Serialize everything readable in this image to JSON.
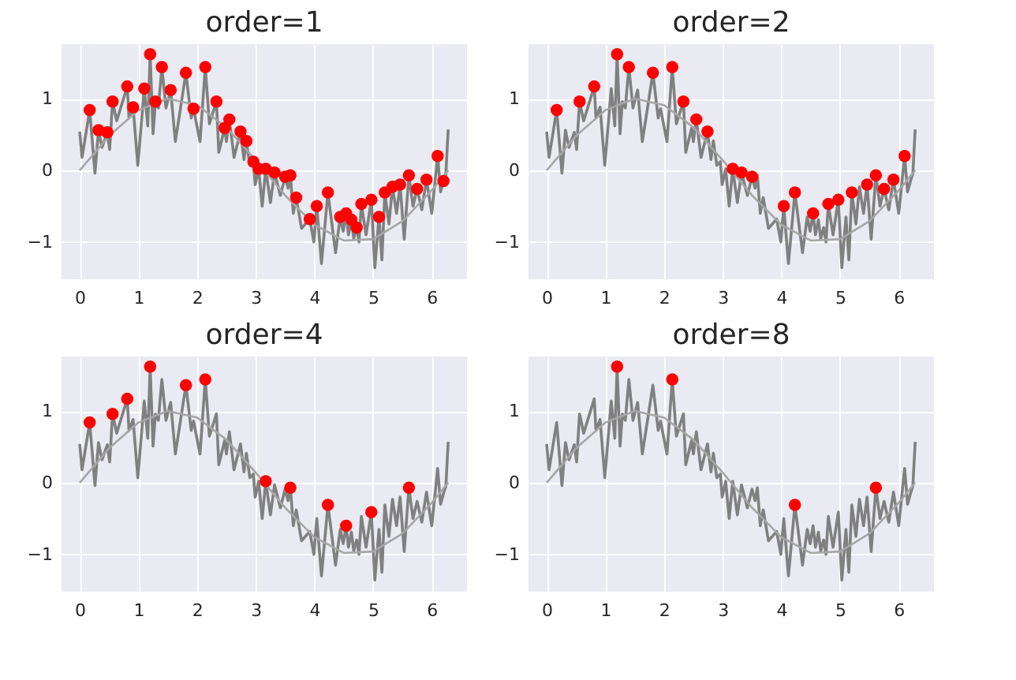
{
  "chart_data": [
    {
      "type": "line",
      "title": "order=1",
      "xlim": [
        -0.31,
        6.6
      ],
      "ylim": [
        -1.52,
        1.76
      ],
      "xticks": [
        0,
        1,
        2,
        3,
        4,
        5,
        6
      ],
      "yticks": [
        -1,
        0,
        1
      ],
      "grid": true,
      "series": [
        {
          "type": "line",
          "color": "#808080",
          "x": [
            0,
            0.04,
            0.17,
            0.26,
            0.32,
            0.38,
            0.47,
            0.51,
            0.56,
            0.63,
            0.81,
            0.84,
            0.91,
            0.99,
            1.1,
            1.16,
            1.2,
            1.25,
            1.29,
            1.34,
            1.4,
            1.47,
            1.55,
            1.63,
            1.81,
            1.9,
            1.94,
            2.05,
            2.14,
            2.21,
            2.33,
            2.37,
            2.47,
            2.5,
            2.55,
            2.63,
            2.74,
            2.8,
            2.84,
            2.9,
            2.96,
            2.99,
            3.05,
            3.11,
            3.17,
            3.25,
            3.32,
            3.42,
            3.5,
            3.55,
            3.59,
            3.64,
            3.69,
            3.78,
            3.92,
            3.99,
            4.04,
            4.12,
            4.23,
            4.36,
            4.44,
            4.49,
            4.54,
            4.58,
            4.63,
            4.67,
            4.72,
            4.76,
            4.8,
            4.88,
            4.97,
            5.03,
            5.1,
            5.15,
            5.2,
            5.27,
            5.33,
            5.4,
            5.46,
            5.53,
            5.61,
            5.68,
            5.75,
            5.83,
            5.91,
            6.0,
            6.1,
            6.15,
            6.2,
            6.24,
            6.28
          ],
          "values": [
            0.54,
            0.18,
            0.84,
            -0.04,
            0.56,
            0.32,
            0.53,
            0.29,
            0.96,
            0.69,
            1.17,
            0.73,
            0.88,
            0.07,
            1.14,
            0.62,
            1.62,
            0.51,
            0.96,
            0.87,
            1.44,
            0.87,
            1.12,
            0.4,
            1.36,
            0.73,
            0.86,
            0.4,
            1.44,
            0.65,
            0.96,
            0.25,
            0.59,
            0.4,
            0.71,
            0.18,
            0.54,
            0.15,
            0.41,
            0.07,
            0.12,
            -0.2,
            0.02,
            -0.5,
            0.02,
            -0.45,
            -0.03,
            -0.35,
            -0.09,
            -0.25,
            -0.07,
            -0.6,
            -0.38,
            -0.81,
            -0.68,
            -1.0,
            -0.5,
            -1.3,
            -0.31,
            -1.15,
            -0.65,
            -0.85,
            -0.6,
            -0.9,
            -0.69,
            -0.95,
            -0.8,
            -1.0,
            -0.47,
            -0.9,
            -0.41,
            -1.36,
            -0.65,
            -1.25,
            -0.31,
            -0.75,
            -0.23,
            -0.6,
            -0.2,
            -0.96,
            -0.07,
            -0.5,
            -0.26,
            -0.55,
            -0.13,
            -0.6,
            0.2,
            -0.3,
            -0.15,
            -0.05,
            0.57
          ]
        },
        {
          "type": "line",
          "color": "#a6a6a6",
          "x": [
            0,
            0.5,
            1,
            1.5,
            2,
            2.5,
            3,
            3.5,
            4,
            4.5,
            5,
            5.5,
            6,
            6.28
          ],
          "values": [
            0,
            0.48,
            0.84,
            1.0,
            0.91,
            0.6,
            0.14,
            -0.35,
            -0.76,
            -0.98,
            -0.96,
            -0.71,
            -0.28,
            0.0
          ]
        },
        {
          "type": "scatter",
          "marker": "circle",
          "color": "#ff0000",
          "x": [
            0.17,
            0.32,
            0.47,
            0.56,
            0.81,
            0.91,
            1.1,
            1.2,
            1.29,
            1.4,
            1.55,
            1.81,
            1.94,
            2.14,
            2.33,
            2.47,
            2.55,
            2.74,
            2.84,
            2.96,
            3.05,
            3.17,
            3.32,
            3.5,
            3.59,
            3.69,
            3.92,
            4.04,
            4.23,
            4.44,
            4.54,
            4.63,
            4.72,
            4.8,
            4.97,
            5.1,
            5.2,
            5.33,
            5.46,
            5.61,
            5.75,
            5.91,
            6.1,
            6.2
          ],
          "values": [
            0.84,
            0.56,
            0.53,
            0.96,
            1.17,
            0.88,
            1.14,
            1.62,
            0.96,
            1.44,
            1.12,
            1.36,
            0.86,
            1.44,
            0.96,
            0.59,
            0.71,
            0.54,
            0.41,
            0.12,
            0.02,
            0.02,
            -0.03,
            -0.09,
            -0.07,
            -0.38,
            -0.68,
            -0.5,
            -0.31,
            -0.65,
            -0.6,
            -0.69,
            -0.8,
            -0.47,
            -0.41,
            -0.65,
            -0.31,
            -0.23,
            -0.2,
            -0.07,
            -0.26,
            -0.13,
            0.2,
            -0.15
          ]
        }
      ]
    },
    {
      "type": "line",
      "title": "order=2",
      "xlim": [
        -0.31,
        6.6
      ],
      "ylim": [
        -1.52,
        1.76
      ],
      "xticks": [
        0,
        1,
        2,
        3,
        4,
        5,
        6
      ],
      "yticks": [
        -1,
        0,
        1
      ],
      "grid": true,
      "series": [
        {
          "type": "line",
          "color": "#808080",
          "x": [
            0,
            0.04,
            0.17,
            0.26,
            0.32,
            0.38,
            0.47,
            0.51,
            0.56,
            0.63,
            0.81,
            0.84,
            0.91,
            0.99,
            1.1,
            1.16,
            1.2,
            1.25,
            1.29,
            1.34,
            1.4,
            1.47,
            1.55,
            1.63,
            1.81,
            1.9,
            1.94,
            2.05,
            2.14,
            2.21,
            2.33,
            2.37,
            2.47,
            2.5,
            2.55,
            2.63,
            2.74,
            2.8,
            2.84,
            2.9,
            2.96,
            2.99,
            3.05,
            3.11,
            3.17,
            3.25,
            3.32,
            3.42,
            3.5,
            3.55,
            3.59,
            3.64,
            3.69,
            3.78,
            3.92,
            3.99,
            4.04,
            4.12,
            4.23,
            4.36,
            4.44,
            4.49,
            4.54,
            4.58,
            4.63,
            4.67,
            4.72,
            4.76,
            4.8,
            4.88,
            4.97,
            5.03,
            5.1,
            5.15,
            5.2,
            5.27,
            5.33,
            5.4,
            5.46,
            5.53,
            5.61,
            5.68,
            5.75,
            5.83,
            5.91,
            6.0,
            6.1,
            6.15,
            6.2,
            6.24,
            6.28
          ],
          "values": [
            0.54,
            0.18,
            0.84,
            -0.04,
            0.56,
            0.32,
            0.53,
            0.29,
            0.96,
            0.69,
            1.17,
            0.73,
            0.88,
            0.07,
            1.14,
            0.62,
            1.62,
            0.51,
            0.96,
            0.87,
            1.44,
            0.87,
            1.12,
            0.4,
            1.36,
            0.73,
            0.86,
            0.4,
            1.44,
            0.65,
            0.96,
            0.25,
            0.59,
            0.4,
            0.71,
            0.18,
            0.54,
            0.15,
            0.41,
            0.07,
            0.12,
            -0.2,
            0.02,
            -0.5,
            0.02,
            -0.45,
            -0.03,
            -0.35,
            -0.09,
            -0.25,
            -0.07,
            -0.6,
            -0.38,
            -0.81,
            -0.68,
            -1.0,
            -0.5,
            -1.3,
            -0.31,
            -1.15,
            -0.65,
            -0.85,
            -0.6,
            -0.9,
            -0.69,
            -0.95,
            -0.8,
            -1.0,
            -0.47,
            -0.9,
            -0.41,
            -1.36,
            -0.65,
            -1.25,
            -0.31,
            -0.75,
            -0.23,
            -0.6,
            -0.2,
            -0.96,
            -0.07,
            -0.5,
            -0.26,
            -0.55,
            -0.13,
            -0.6,
            0.2,
            -0.3,
            -0.15,
            -0.05,
            0.57
          ]
        },
        {
          "type": "line",
          "color": "#a6a6a6",
          "x": [
            0,
            0.5,
            1,
            1.5,
            2,
            2.5,
            3,
            3.5,
            4,
            4.5,
            5,
            5.5,
            6,
            6.28
          ],
          "values": [
            0,
            0.48,
            0.84,
            1.0,
            0.91,
            0.6,
            0.14,
            -0.35,
            -0.76,
            -0.98,
            -0.96,
            -0.71,
            -0.28,
            0.0
          ]
        },
        {
          "type": "scatter",
          "marker": "circle",
          "color": "#ff0000",
          "x": [
            0.17,
            0.56,
            0.81,
            1.2,
            1.4,
            1.81,
            2.14,
            2.33,
            2.55,
            2.74,
            3.17,
            3.32,
            3.5,
            4.04,
            4.23,
            4.54,
            4.8,
            4.97,
            5.2,
            5.46,
            5.61,
            5.75,
            5.91,
            6.1
          ],
          "values": [
            0.84,
            0.96,
            1.17,
            1.62,
            1.44,
            1.36,
            1.44,
            0.96,
            0.71,
            0.54,
            0.02,
            -0.03,
            -0.09,
            -0.5,
            -0.31,
            -0.6,
            -0.47,
            -0.41,
            -0.31,
            -0.2,
            -0.07,
            -0.26,
            -0.13,
            0.2
          ]
        }
      ]
    },
    {
      "type": "line",
      "title": "order=4",
      "xlim": [
        -0.31,
        6.6
      ],
      "ylim": [
        -1.52,
        1.76
      ],
      "xticks": [
        0,
        1,
        2,
        3,
        4,
        5,
        6
      ],
      "yticks": [
        -1,
        0,
        1
      ],
      "grid": true,
      "series": [
        {
          "type": "line",
          "color": "#808080",
          "x": [
            0,
            0.04,
            0.17,
            0.26,
            0.32,
            0.38,
            0.47,
            0.51,
            0.56,
            0.63,
            0.81,
            0.84,
            0.91,
            0.99,
            1.1,
            1.16,
            1.2,
            1.25,
            1.29,
            1.34,
            1.4,
            1.47,
            1.55,
            1.63,
            1.81,
            1.9,
            1.94,
            2.05,
            2.14,
            2.21,
            2.33,
            2.37,
            2.47,
            2.5,
            2.55,
            2.63,
            2.74,
            2.8,
            2.84,
            2.9,
            2.96,
            2.99,
            3.05,
            3.11,
            3.17,
            3.25,
            3.32,
            3.42,
            3.5,
            3.55,
            3.59,
            3.64,
            3.69,
            3.78,
            3.92,
            3.99,
            4.04,
            4.12,
            4.23,
            4.36,
            4.44,
            4.49,
            4.54,
            4.58,
            4.63,
            4.67,
            4.72,
            4.76,
            4.8,
            4.88,
            4.97,
            5.03,
            5.1,
            5.15,
            5.2,
            5.27,
            5.33,
            5.4,
            5.46,
            5.53,
            5.61,
            5.68,
            5.75,
            5.83,
            5.91,
            6.0,
            6.1,
            6.15,
            6.2,
            6.24,
            6.28
          ],
          "values": [
            0.54,
            0.18,
            0.84,
            -0.04,
            0.56,
            0.32,
            0.53,
            0.29,
            0.96,
            0.69,
            1.17,
            0.73,
            0.88,
            0.07,
            1.14,
            0.62,
            1.62,
            0.51,
            0.96,
            0.87,
            1.44,
            0.87,
            1.12,
            0.4,
            1.36,
            0.73,
            0.86,
            0.4,
            1.44,
            0.65,
            0.96,
            0.25,
            0.59,
            0.4,
            0.71,
            0.18,
            0.54,
            0.15,
            0.41,
            0.07,
            0.12,
            -0.2,
            0.02,
            -0.5,
            0.02,
            -0.45,
            -0.03,
            -0.35,
            -0.09,
            -0.25,
            -0.07,
            -0.6,
            -0.38,
            -0.81,
            -0.68,
            -1.0,
            -0.5,
            -1.3,
            -0.31,
            -1.15,
            -0.65,
            -0.85,
            -0.6,
            -0.9,
            -0.69,
            -0.95,
            -0.8,
            -1.0,
            -0.47,
            -0.9,
            -0.41,
            -1.36,
            -0.65,
            -1.25,
            -0.31,
            -0.75,
            -0.23,
            -0.6,
            -0.2,
            -0.96,
            -0.07,
            -0.5,
            -0.26,
            -0.55,
            -0.13,
            -0.6,
            0.2,
            -0.3,
            -0.15,
            -0.05,
            0.57
          ]
        },
        {
          "type": "line",
          "color": "#a6a6a6",
          "x": [
            0,
            0.5,
            1,
            1.5,
            2,
            2.5,
            3,
            3.5,
            4,
            4.5,
            5,
            5.5,
            6,
            6.28
          ],
          "values": [
            0,
            0.48,
            0.84,
            1.0,
            0.91,
            0.6,
            0.14,
            -0.35,
            -0.76,
            -0.98,
            -0.96,
            -0.71,
            -0.28,
            0.0
          ]
        },
        {
          "type": "scatter",
          "marker": "circle",
          "color": "#ff0000",
          "x": [
            0.17,
            0.56,
            0.81,
            1.2,
            1.81,
            2.14,
            3.17,
            3.59,
            4.23,
            4.54,
            4.97,
            5.61
          ],
          "values": [
            0.84,
            0.96,
            1.17,
            1.62,
            1.36,
            1.44,
            0.02,
            -0.07,
            -0.31,
            -0.6,
            -0.41,
            -0.07
          ]
        }
      ]
    },
    {
      "type": "line",
      "title": "order=8",
      "xlim": [
        -0.31,
        6.6
      ],
      "ylim": [
        -1.52,
        1.76
      ],
      "xticks": [
        0,
        1,
        2,
        3,
        4,
        5,
        6
      ],
      "yticks": [
        -1,
        0,
        1
      ],
      "grid": true,
      "series": [
        {
          "type": "line",
          "color": "#808080",
          "x": [
            0,
            0.04,
            0.17,
            0.26,
            0.32,
            0.38,
            0.47,
            0.51,
            0.56,
            0.63,
            0.81,
            0.84,
            0.91,
            0.99,
            1.1,
            1.16,
            1.2,
            1.25,
            1.29,
            1.34,
            1.4,
            1.47,
            1.55,
            1.63,
            1.81,
            1.9,
            1.94,
            2.05,
            2.14,
            2.21,
            2.33,
            2.37,
            2.47,
            2.5,
            2.55,
            2.63,
            2.74,
            2.8,
            2.84,
            2.9,
            2.96,
            2.99,
            3.05,
            3.11,
            3.17,
            3.25,
            3.32,
            3.42,
            3.5,
            3.55,
            3.59,
            3.64,
            3.69,
            3.78,
            3.92,
            3.99,
            4.04,
            4.12,
            4.23,
            4.36,
            4.44,
            4.49,
            4.54,
            4.58,
            4.63,
            4.67,
            4.72,
            4.76,
            4.8,
            4.88,
            4.97,
            5.03,
            5.1,
            5.15,
            5.2,
            5.27,
            5.33,
            5.4,
            5.46,
            5.53,
            5.61,
            5.68,
            5.75,
            5.83,
            5.91,
            6.0,
            6.1,
            6.15,
            6.2,
            6.24,
            6.28
          ],
          "values": [
            0.54,
            0.18,
            0.84,
            -0.04,
            0.56,
            0.32,
            0.53,
            0.29,
            0.96,
            0.69,
            1.17,
            0.73,
            0.88,
            0.07,
            1.14,
            0.62,
            1.62,
            0.51,
            0.96,
            0.87,
            1.44,
            0.87,
            1.12,
            0.4,
            1.36,
            0.73,
            0.86,
            0.4,
            1.44,
            0.65,
            0.96,
            0.25,
            0.59,
            0.4,
            0.71,
            0.18,
            0.54,
            0.15,
            0.41,
            0.07,
            0.12,
            -0.2,
            0.02,
            -0.5,
            0.02,
            -0.45,
            -0.03,
            -0.35,
            -0.09,
            -0.25,
            -0.07,
            -0.6,
            -0.38,
            -0.81,
            -0.68,
            -1.0,
            -0.5,
            -1.3,
            -0.31,
            -1.15,
            -0.65,
            -0.85,
            -0.6,
            -0.9,
            -0.69,
            -0.95,
            -0.8,
            -1.0,
            -0.47,
            -0.9,
            -0.41,
            -1.36,
            -0.65,
            -1.25,
            -0.31,
            -0.75,
            -0.23,
            -0.6,
            -0.2,
            -0.96,
            -0.07,
            -0.5,
            -0.26,
            -0.55,
            -0.13,
            -0.6,
            0.2,
            -0.3,
            -0.15,
            -0.05,
            0.57
          ]
        },
        {
          "type": "line",
          "color": "#a6a6a6",
          "x": [
            0,
            0.5,
            1,
            1.5,
            2,
            2.5,
            3,
            3.5,
            4,
            4.5,
            5,
            5.5,
            6,
            6.28
          ],
          "values": [
            0,
            0.48,
            0.84,
            1.0,
            0.91,
            0.6,
            0.14,
            -0.35,
            -0.76,
            -0.98,
            -0.96,
            -0.71,
            -0.28,
            0.0
          ]
        },
        {
          "type": "scatter",
          "marker": "circle",
          "color": "#ff0000",
          "x": [
            1.2,
            2.14,
            4.23,
            5.61
          ],
          "values": [
            1.62,
            1.44,
            -0.31,
            -0.07
          ]
        }
      ]
    }
  ]
}
